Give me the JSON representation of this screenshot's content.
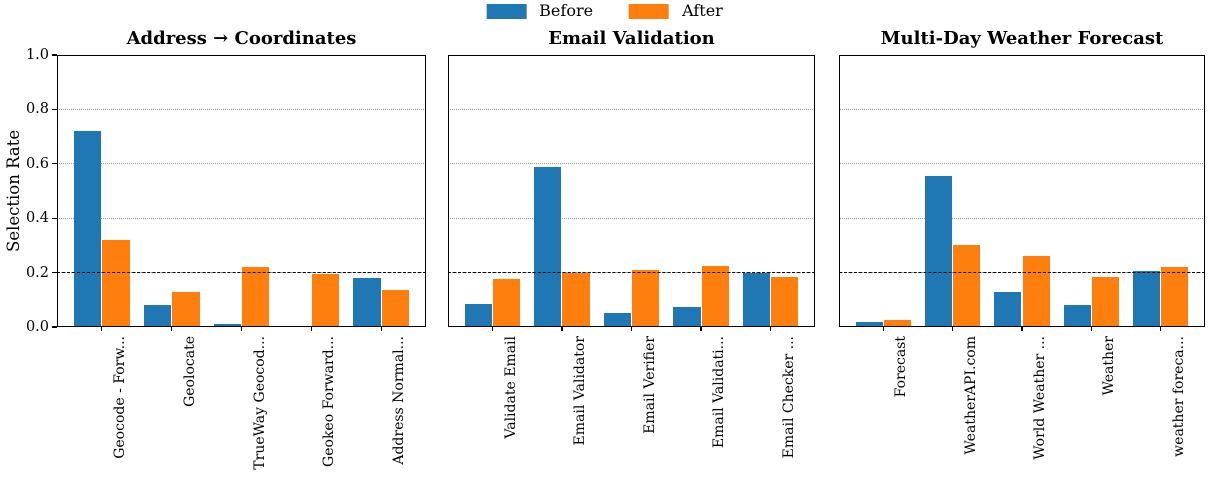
{
  "legend": {
    "items": [
      {
        "label": "Before",
        "color": "#1f77b4"
      },
      {
        "label": "After",
        "color": "#ff7f0e"
      }
    ]
  },
  "y_axis": {
    "label": "Selection Rate",
    "tick_labels": [
      "0.0",
      "0.2",
      "0.4",
      "0.6",
      "0.8",
      "1.0"
    ],
    "tick_values": [
      0.0,
      0.2,
      0.4,
      0.6,
      0.8,
      1.0
    ]
  },
  "chart_data": [
    {
      "type": "bar",
      "title": "Address → Coordinates",
      "categories": [
        "Geocode - Forw...",
        "Geolocate",
        "TrueWay Geocod...",
        "Geokeo Forward...",
        "Address Normal..."
      ],
      "series": [
        {
          "name": "Before",
          "color": "#1f77b4",
          "values": [
            0.72,
            0.08,
            0.01,
            0.005,
            0.18
          ]
        },
        {
          "name": "After",
          "color": "#ff7f0e",
          "values": [
            0.32,
            0.13,
            0.22,
            0.195,
            0.135
          ]
        }
      ],
      "ylabel": "Selection Rate",
      "ylim": [
        0.0,
        1.0
      ],
      "grid": "dotted horizontal at 0.2 steps",
      "ref_line": 0.2,
      "legend_position": "top-center-of-figure"
    },
    {
      "type": "bar",
      "title": "Email Validation",
      "categories": [
        "Validate Email",
        "Email Validator",
        "Email Verifier",
        "Email Validati...",
        "Email Checker ..."
      ],
      "series": [
        {
          "name": "Before",
          "color": "#1f77b4",
          "values": [
            0.085,
            0.59,
            0.05,
            0.075,
            0.2
          ]
        },
        {
          "name": "After",
          "color": "#ff7f0e",
          "values": [
            0.175,
            0.2,
            0.21,
            0.225,
            0.185
          ]
        }
      ],
      "ylabel": "",
      "ylim": [
        0.0,
        1.0
      ],
      "grid": "dotted horizontal at 0.2 steps",
      "ref_line": 0.2
    },
    {
      "type": "bar",
      "title": "Multi-Day Weather Forecast",
      "categories": [
        "Forecast",
        "WeatherAPI.com",
        "World Weather ...",
        "Weather",
        "weather foreca..."
      ],
      "series": [
        {
          "name": "Before",
          "color": "#1f77b4",
          "values": [
            0.02,
            0.555,
            0.13,
            0.08,
            0.205
          ]
        },
        {
          "name": "After",
          "color": "#ff7f0e",
          "values": [
            0.025,
            0.3,
            0.26,
            0.185,
            0.22
          ]
        }
      ],
      "ylabel": "",
      "ylim": [
        0.0,
        1.0
      ],
      "grid": "dotted horizontal at 0.2 steps",
      "ref_line": 0.2
    }
  ]
}
